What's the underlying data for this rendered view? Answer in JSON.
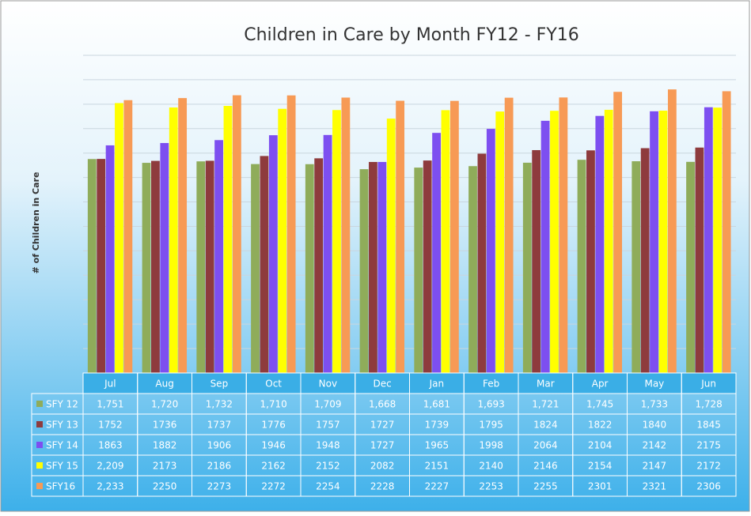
{
  "chart_data": {
    "type": "bar",
    "title": "Children in Care by Month FY12 - FY16",
    "y_label": "# of Children in Care",
    "categories": [
      "Jul",
      "Aug",
      "Sep",
      "Oct",
      "Nov",
      "Dec",
      "Jan",
      "Feb",
      "Mar",
      "Apr",
      "May",
      "Jun"
    ],
    "series": [
      {
        "name": "SFY 12",
        "color": "#8fac5a",
        "values": [
          1751,
          1720,
          1732,
          1710,
          1709,
          1668,
          1681,
          1693,
          1721,
          1745,
          1733,
          1728
        ],
        "value_labels": [
          "1,751",
          "1,720",
          "1,732",
          "1,710",
          "1,709",
          "1,668",
          "1,681",
          "1,693",
          "1,721",
          "1,745",
          "1,733",
          "1,728"
        ]
      },
      {
        "name": "SFY 13",
        "color": "#8e3b3d",
        "values": [
          1752,
          1736,
          1737,
          1776,
          1757,
          1727,
          1739,
          1795,
          1824,
          1822,
          1840,
          1845
        ]
      },
      {
        "name": "SFY 14",
        "color": "#7d4ff0",
        "values": [
          1863,
          1882,
          1906,
          1946,
          1948,
          1727,
          1965,
          1998,
          2064,
          2104,
          2142,
          2175
        ]
      },
      {
        "name": "SFY 15",
        "color": "#ffff00",
        "values": [
          2209,
          2173,
          2186,
          2162,
          2152,
          2082,
          2151,
          2140,
          2146,
          2154,
          2147,
          2172
        ],
        "value_labels": [
          "2,209",
          "2173",
          "2186",
          "2162",
          "2152",
          "2082",
          "2151",
          "2140",
          "2146",
          "2154",
          "2147",
          "2172"
        ]
      },
      {
        "name": "SFY16",
        "color": "#f79a55",
        "values": [
          2233,
          2250,
          2273,
          2272,
          2254,
          2228,
          2227,
          2253,
          2255,
          2301,
          2321,
          2306
        ],
        "value_labels": [
          "2,233",
          "2250",
          "2273",
          "2272",
          "2254",
          "2228",
          "2227",
          "2253",
          "2255",
          "2301",
          "2321",
          "2306"
        ]
      }
    ],
    "ylim": [
      0,
      2600
    ],
    "yticks": [
      0,
      200,
      400,
      600,
      800,
      1000,
      1200,
      1400,
      1600,
      1800,
      2000,
      2200,
      2400,
      2600
    ],
    "grid": true
  }
}
